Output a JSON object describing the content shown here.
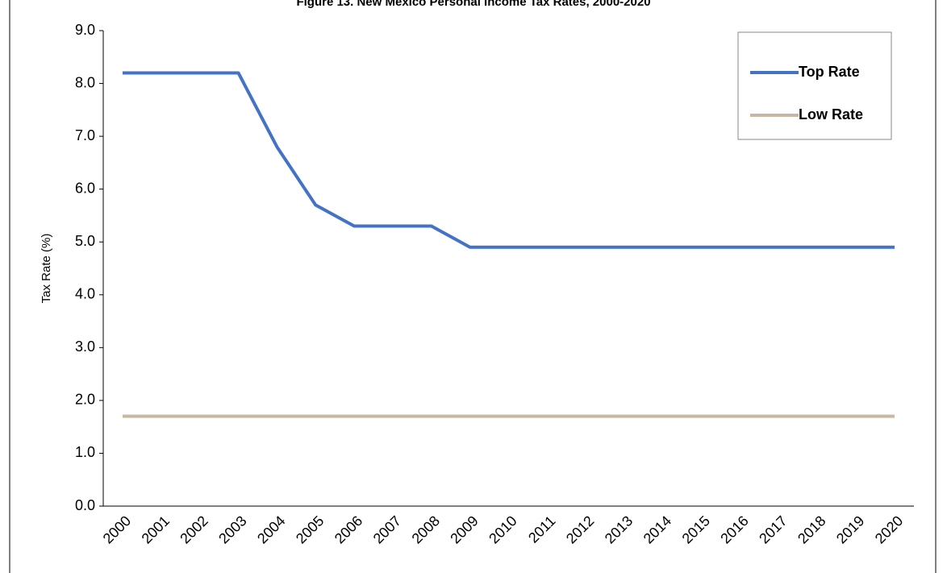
{
  "chart_data": {
    "type": "line",
    "title": "Figure 13. New Mexico Personal Income Tax Rates, 2000-2020",
    "y_label": "Tax Rate (%)",
    "categories": [
      "2000",
      "2001",
      "2002",
      "2003",
      "2004",
      "2005",
      "2006",
      "2007",
      "2008",
      "2009",
      "2010",
      "2011",
      "2012",
      "2013",
      "2014",
      "2015",
      "2016",
      "2017",
      "2018",
      "2019",
      "2020"
    ],
    "series": [
      {
        "name": "Top Rate",
        "color": "#4472c4",
        "values": [
          8.2,
          8.2,
          8.2,
          8.2,
          6.8,
          5.7,
          5.3,
          5.3,
          5.3,
          4.9,
          4.9,
          4.9,
          4.9,
          4.9,
          4.9,
          4.9,
          4.9,
          4.9,
          4.9,
          4.9,
          4.9
        ]
      },
      {
        "name": "Low Rate",
        "color": "#c8b8a2",
        "values": [
          1.7,
          1.7,
          1.7,
          1.7,
          1.7,
          1.7,
          1.7,
          1.7,
          1.7,
          1.7,
          1.7,
          1.7,
          1.7,
          1.7,
          1.7,
          1.7,
          1.7,
          1.7,
          1.7,
          1.7,
          1.7
        ]
      }
    ],
    "ylim": [
      0,
      9
    ],
    "yticks": [
      {
        "value": 0,
        "label": "0.0"
      },
      {
        "value": 1,
        "label": "1.0"
      },
      {
        "value": 2,
        "label": "2.0"
      },
      {
        "value": 3,
        "label": "3.0"
      },
      {
        "value": 4,
        "label": "4.0"
      },
      {
        "value": 5,
        "label": "5.0"
      },
      {
        "value": 6,
        "label": "6.0"
      },
      {
        "value": 7,
        "label": "7.0"
      },
      {
        "value": 8,
        "label": "8.0"
      },
      {
        "value": 9,
        "label": "9.0"
      }
    ],
    "grid": false,
    "legend": "top-right"
  }
}
